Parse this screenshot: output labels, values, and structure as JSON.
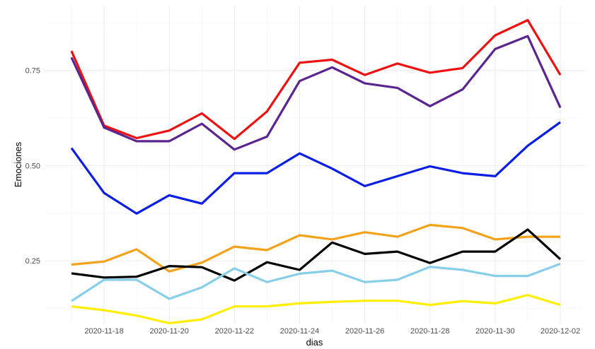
{
  "chart_data": {
    "type": "line",
    "title": "",
    "xlabel": "dias",
    "ylabel": "Emociones",
    "x": [
      "2020-11-17",
      "2020-11-18",
      "2020-11-19",
      "2020-11-20",
      "2020-11-21",
      "2020-11-22",
      "2020-11-23",
      "2020-11-24",
      "2020-11-25",
      "2020-11-26",
      "2020-11-27",
      "2020-11-28",
      "2020-11-29",
      "2020-11-30",
      "2020-12-01",
      "2020-12-02"
    ],
    "x_ticks": [
      "2020-11-18",
      "2020-11-20",
      "2020-11-22",
      "2020-11-24",
      "2020-11-26",
      "2020-11-28",
      "2020-11-30",
      "2020-12-02"
    ],
    "y_ticks": [
      0.25,
      0.5,
      0.75
    ],
    "y_tick_labels": [
      "0.25",
      "0.50",
      "0.75"
    ],
    "ylim": [
      0.085,
      0.92
    ],
    "grid": true,
    "legend": "none",
    "series": [
      {
        "name": "red",
        "color": "#ee1111",
        "values": [
          0.801,
          0.605,
          0.572,
          0.592,
          0.637,
          0.57,
          0.642,
          0.77,
          0.778,
          0.738,
          0.768,
          0.744,
          0.756,
          0.842,
          0.882,
          0.738
        ]
      },
      {
        "name": "purple",
        "color": "#5b2590",
        "values": [
          0.784,
          0.6,
          0.564,
          0.564,
          0.61,
          0.542,
          0.576,
          0.722,
          0.758,
          0.716,
          0.704,
          0.656,
          0.7,
          0.806,
          0.84,
          0.652
        ]
      },
      {
        "name": "blue",
        "color": "#0b1ee6",
        "values": [
          0.546,
          0.428,
          0.374,
          0.422,
          0.4,
          0.48,
          0.48,
          0.532,
          0.492,
          0.446,
          0.472,
          0.498,
          0.48,
          0.472,
          0.552,
          0.614
        ]
      },
      {
        "name": "orange",
        "color": "#f5a21b",
        "values": [
          0.24,
          0.248,
          0.28,
          0.222,
          0.245,
          0.287,
          0.278,
          0.317,
          0.306,
          0.325,
          0.313,
          0.344,
          0.336,
          0.306,
          0.313,
          0.313
        ]
      },
      {
        "name": "black",
        "color": "#000000",
        "values": [
          0.217,
          0.206,
          0.208,
          0.236,
          0.233,
          0.198,
          0.246,
          0.226,
          0.298,
          0.268,
          0.274,
          0.244,
          0.274,
          0.274,
          0.332,
          0.254
        ]
      },
      {
        "name": "skyblue",
        "color": "#87cfe9",
        "values": [
          0.144,
          0.2,
          0.2,
          0.15,
          0.18,
          0.23,
          0.194,
          0.216,
          0.224,
          0.194,
          0.2,
          0.234,
          0.226,
          0.21,
          0.21,
          0.242
        ]
      },
      {
        "name": "yellow",
        "color": "#ffee00",
        "values": [
          0.13,
          0.12,
          0.106,
          0.086,
          0.096,
          0.13,
          0.13,
          0.138,
          0.142,
          0.145,
          0.145,
          0.134,
          0.144,
          0.138,
          0.16,
          0.134
        ]
      }
    ]
  }
}
